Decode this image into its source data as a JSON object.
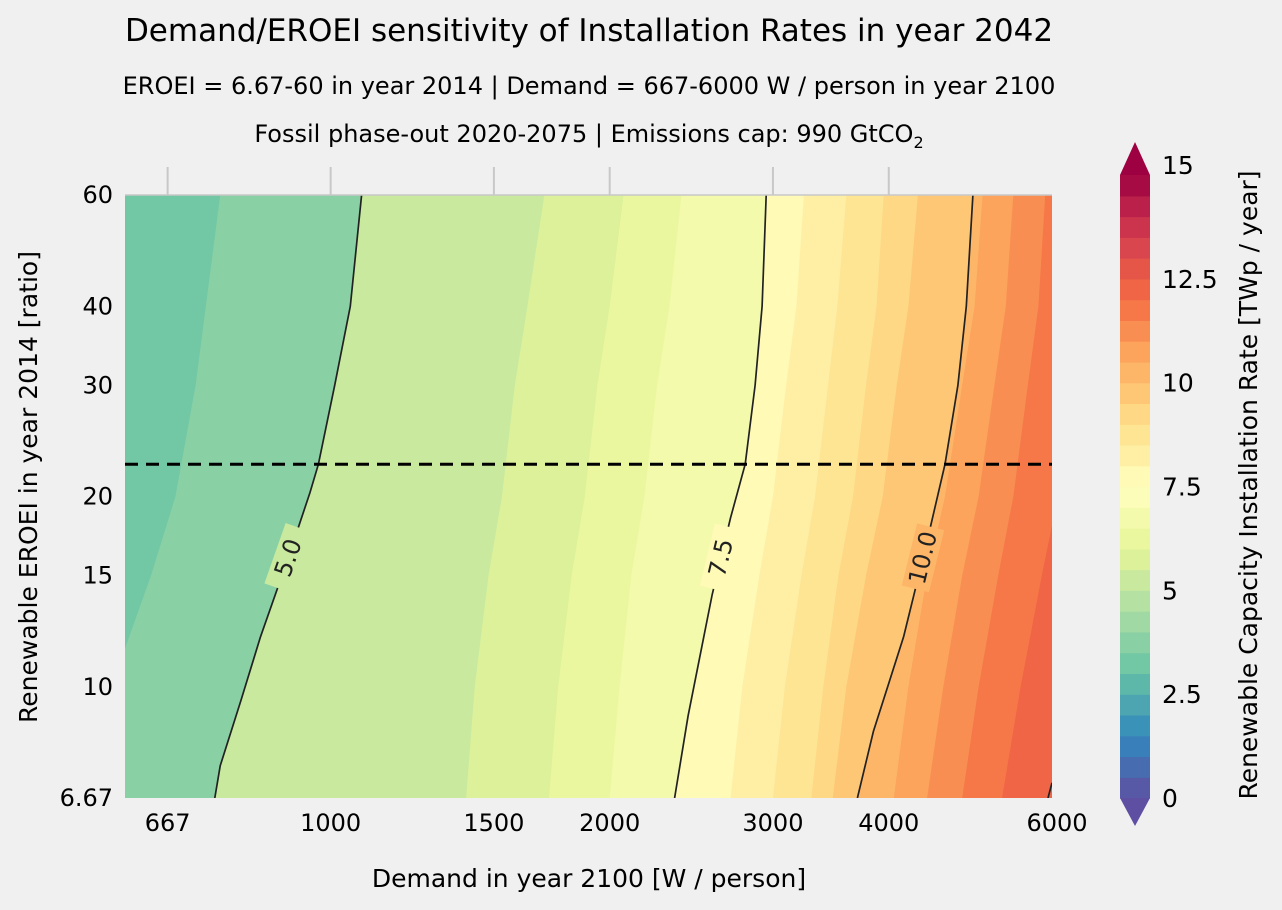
{
  "chart_data": {
    "type": "contour",
    "title": "Demand/EROEI sensitivity of Installation Rates in year 2042",
    "subtitle_line1": "EROEI = 6.67-60 in year 2014   |   Demand = 667-6000 W / person in year 2100",
    "subtitle_line2": "Fossil phase-out 2020-2075  |   Emissions cap: 990 GtCO",
    "subtitle_line2_subscript": "2",
    "xlabel": "Demand in year 2100 [W / person]",
    "ylabel": "Renewable EROEI in year 2014 [ratio]",
    "x_scale": "log",
    "y_scale": "log",
    "xlim": [
      600,
      6000
    ],
    "ylim": [
      6.67,
      60
    ],
    "x_ticks": [
      667,
      1000,
      1500,
      2000,
      3000,
      4000,
      6000
    ],
    "x_tick_labels": [
      "667",
      "1000",
      "1500",
      "2000",
      "3000",
      "4000",
      "6000"
    ],
    "y_ticks": [
      6.67,
      10,
      15,
      20,
      30,
      40,
      60
    ],
    "y_tick_labels": [
      "6.67",
      "10",
      "15",
      "20",
      "30",
      "40",
      "60"
    ],
    "reference_line": {
      "y": 22.5,
      "style": "dashed"
    },
    "contour_lines": [
      {
        "level": 5.0,
        "label": "5.0",
        "points": [
          [
            750,
            6.67
          ],
          [
            760,
            7.5
          ],
          [
            800,
            9.5
          ],
          [
            840,
            12
          ],
          [
            900,
            16
          ],
          [
            950,
            20.3
          ],
          [
            970,
            22.5
          ],
          [
            1010,
            30
          ],
          [
            1050,
            40
          ],
          [
            1080,
            60
          ]
        ]
      },
      {
        "level": 7.5,
        "label": "7.5",
        "points": [
          [
            2350,
            6.67
          ],
          [
            2430,
            9
          ],
          [
            2580,
            14
          ],
          [
            2700,
            18.5
          ],
          [
            2800,
            22.5
          ],
          [
            2870,
            30
          ],
          [
            2920,
            40
          ],
          [
            2950,
            60
          ]
        ]
      },
      {
        "level": 10.0,
        "label": "10.0",
        "points": [
          [
            3700,
            6.67
          ],
          [
            3850,
            8.5
          ],
          [
            4150,
            12
          ],
          [
            4400,
            17
          ],
          [
            4600,
            22.5
          ],
          [
            4750,
            30
          ],
          [
            4850,
            40
          ],
          [
            4930,
            60
          ]
        ]
      },
      {
        "level": 12.5,
        "label": "",
        "points": [
          [
            5940,
            6.67
          ],
          [
            6000,
            7.05
          ]
        ]
      }
    ],
    "filled_band_boundaries": [
      {
        "level": 3.5,
        "points": [
          [
            600,
            11.5
          ],
          [
            640,
            15
          ],
          [
            680,
            20
          ],
          [
            715,
            30
          ],
          [
            760,
            60
          ]
        ]
      },
      {
        "level": 4.5,
        "points": [
          [
            1000,
            6.67
          ],
          [
            1030,
            10
          ],
          [
            1080,
            15
          ],
          [
            1130,
            20
          ],
          [
            1180,
            30
          ],
          [
            1230,
            40
          ],
          [
            1300,
            60
          ]
        ]
      },
      {
        "level": 5.5,
        "points": [
          [
            1400,
            6.67
          ],
          [
            1430,
            10
          ],
          [
            1480,
            15
          ],
          [
            1530,
            20
          ],
          [
            1580,
            30
          ],
          [
            1630,
            40
          ],
          [
            1700,
            60
          ]
        ]
      },
      {
        "level": 6.0,
        "points": [
          [
            1720,
            6.67
          ],
          [
            1760,
            10
          ],
          [
            1820,
            15
          ],
          [
            1880,
            20
          ],
          [
            1940,
            30
          ],
          [
            2000,
            40
          ],
          [
            2070,
            60
          ]
        ]
      },
      {
        "level": 6.5,
        "points": [
          [
            2000,
            6.67
          ],
          [
            2050,
            10
          ],
          [
            2110,
            15
          ],
          [
            2180,
            20
          ],
          [
            2250,
            30
          ],
          [
            2320,
            40
          ],
          [
            2390,
            60
          ]
        ]
      },
      {
        "level": 8.0,
        "points": [
          [
            2700,
            6.67
          ],
          [
            2780,
            10
          ],
          [
            2900,
            15
          ],
          [
            3000,
            20
          ],
          [
            3100,
            30
          ],
          [
            3180,
            40
          ],
          [
            3240,
            60
          ]
        ]
      },
      {
        "level": 8.5,
        "points": [
          [
            3000,
            6.67
          ],
          [
            3090,
            10
          ],
          [
            3220,
            15
          ],
          [
            3330,
            20
          ],
          [
            3440,
            30
          ],
          [
            3520,
            40
          ],
          [
            3600,
            60
          ]
        ]
      },
      {
        "level": 9.0,
        "points": [
          [
            3300,
            6.67
          ],
          [
            3400,
            10
          ],
          [
            3530,
            15
          ],
          [
            3660,
            20
          ],
          [
            3780,
            30
          ],
          [
            3880,
            40
          ],
          [
            3950,
            60
          ]
        ]
      },
      {
        "level": 9.5,
        "points": [
          [
            3480,
            6.67
          ],
          [
            3600,
            10
          ],
          [
            3780,
            15
          ],
          [
            3940,
            20
          ],
          [
            4080,
            30
          ],
          [
            4200,
            40
          ],
          [
            4300,
            60
          ]
        ]
      },
      {
        "level": 10.5,
        "points": [
          [
            4050,
            6.67
          ],
          [
            4200,
            10
          ],
          [
            4400,
            15
          ],
          [
            4600,
            20
          ],
          [
            4800,
            30
          ],
          [
            4950,
            40
          ],
          [
            5050,
            60
          ]
        ]
      },
      {
        "level": 11.0,
        "points": [
          [
            4400,
            6.67
          ],
          [
            4580,
            10
          ],
          [
            4800,
            15
          ],
          [
            5000,
            20
          ],
          [
            5200,
            30
          ],
          [
            5350,
            40
          ],
          [
            5450,
            60
          ]
        ]
      },
      {
        "level": 11.5,
        "points": [
          [
            4800,
            6.67
          ],
          [
            5000,
            10
          ],
          [
            5250,
            15
          ],
          [
            5450,
            20
          ],
          [
            5650,
            30
          ],
          [
            5800,
            40
          ],
          [
            5900,
            60
          ]
        ]
      },
      {
        "level": 12.0,
        "points": [
          [
            5300,
            6.67
          ],
          [
            5550,
            10
          ],
          [
            5850,
            15
          ],
          [
            6000,
            18
          ]
        ]
      }
    ],
    "colorbar": {
      "label": "Renewable Capacity Installation Rate [TWp / year]",
      "min": 0,
      "max": 15,
      "step": 0.5,
      "ticks": [
        0,
        2.5,
        5,
        7.5,
        10,
        12.5,
        15
      ],
      "tick_labels": [
        "0",
        "2.5",
        "5",
        "7.5",
        "10",
        "12.5",
        "15"
      ],
      "extend": "both",
      "colormap": "Spectral_r"
    }
  }
}
